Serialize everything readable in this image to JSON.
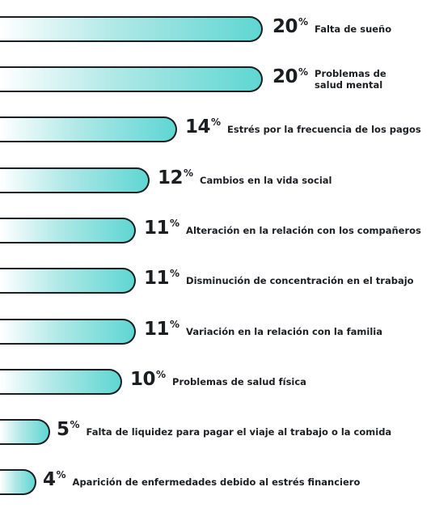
{
  "chart_data": {
    "type": "bar",
    "orientation": "horizontal",
    "categories": [
      "Falta de sueño",
      "Problemas de salud mental",
      "Estrés por la frecuencia de los pagos",
      "Cambios en la vida social",
      "Alteración en la relación con los compañeros",
      "Disminución de concentración en el trabajo",
      "Variación en la relación con la familia",
      "Problemas de salud física",
      "Falta de liquidez para pagar el viaje al trabajo o la comida",
      "Aparición de enfermedades debido al estrés financiero"
    ],
    "values": [
      20,
      20,
      14,
      12,
      11,
      11,
      11,
      10,
      5,
      4
    ],
    "value_suffix": "%",
    "colors": {
      "bar_start": "#ffffff",
      "bar_end": "#5fd6d2",
      "outline": "#1c1e22",
      "text": "#1c1e22"
    },
    "grid": false,
    "legend": "none"
  }
}
